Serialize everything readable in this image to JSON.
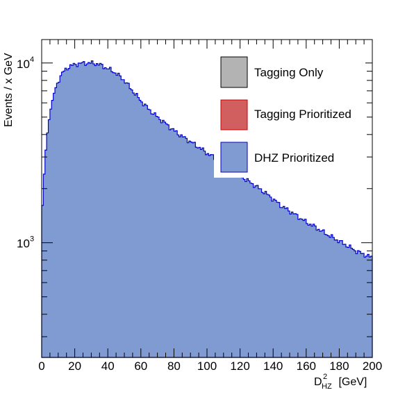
{
  "chart_data": {
    "type": "histogram",
    "ylabel": "Events / x GeV",
    "xlabel": {
      "base": "D",
      "sup": "2",
      "sub": "HZ",
      "unit": " [GeV]"
    },
    "xlim": [
      0,
      200
    ],
    "ylim": [
      230,
      13500
    ],
    "yscale": "log",
    "x_ticks": [
      0,
      20,
      40,
      60,
      80,
      100,
      120,
      140,
      160,
      180,
      200
    ],
    "y_tick_labels": [
      {
        "value": 1000,
        "base": "10",
        "exp": "3"
      },
      {
        "value": 10000,
        "base": "10",
        "exp": "4"
      }
    ],
    "bin_width": 1,
    "series": [
      {
        "name": "Tagging Only",
        "fill": "#b3b3b3",
        "line": "#000000",
        "values": []
      },
      {
        "name": "Tagging Prioritized",
        "fill": "#d15f5f",
        "line": "#cc0000",
        "values": []
      },
      {
        "name": "DHZ Prioritized",
        "fill": "#7f9bd1",
        "line": "#0000cc",
        "x_points": [
          0,
          1,
          2,
          3,
          4,
          5,
          6,
          7,
          8,
          9,
          10,
          11,
          12,
          13,
          14,
          15,
          16,
          18,
          20,
          22,
          24,
          26,
          28,
          30,
          32,
          34,
          36,
          38,
          40,
          42,
          44,
          46,
          48,
          50,
          55,
          60,
          65,
          70,
          75,
          80,
          85,
          90,
          95,
          100,
          105,
          110,
          115,
          120,
          125,
          130,
          135,
          140,
          145,
          150,
          155,
          160,
          165,
          170,
          175,
          180,
          185,
          190,
          195,
          199
        ],
        "y_points": [
          1300,
          2000,
          2900,
          3700,
          4500,
          5200,
          5900,
          6500,
          7000,
          7500,
          7900,
          8300,
          8600,
          8900,
          9100,
          9300,
          9450,
          9650,
          9800,
          9900,
          9950,
          9980,
          9990,
          9980,
          9950,
          9850,
          9700,
          9500,
          9300,
          9100,
          8900,
          8600,
          8300,
          8000,
          7000,
          6150,
          5500,
          5000,
          4600,
          4200,
          3900,
          3650,
          3400,
          3150,
          2950,
          2750,
          2550,
          2350,
          2200,
          2050,
          1900,
          1750,
          1600,
          1500,
          1400,
          1300,
          1230,
          1150,
          1080,
          1020,
          960,
          900,
          860,
          830
        ]
      }
    ],
    "legend_position": "top-right"
  }
}
